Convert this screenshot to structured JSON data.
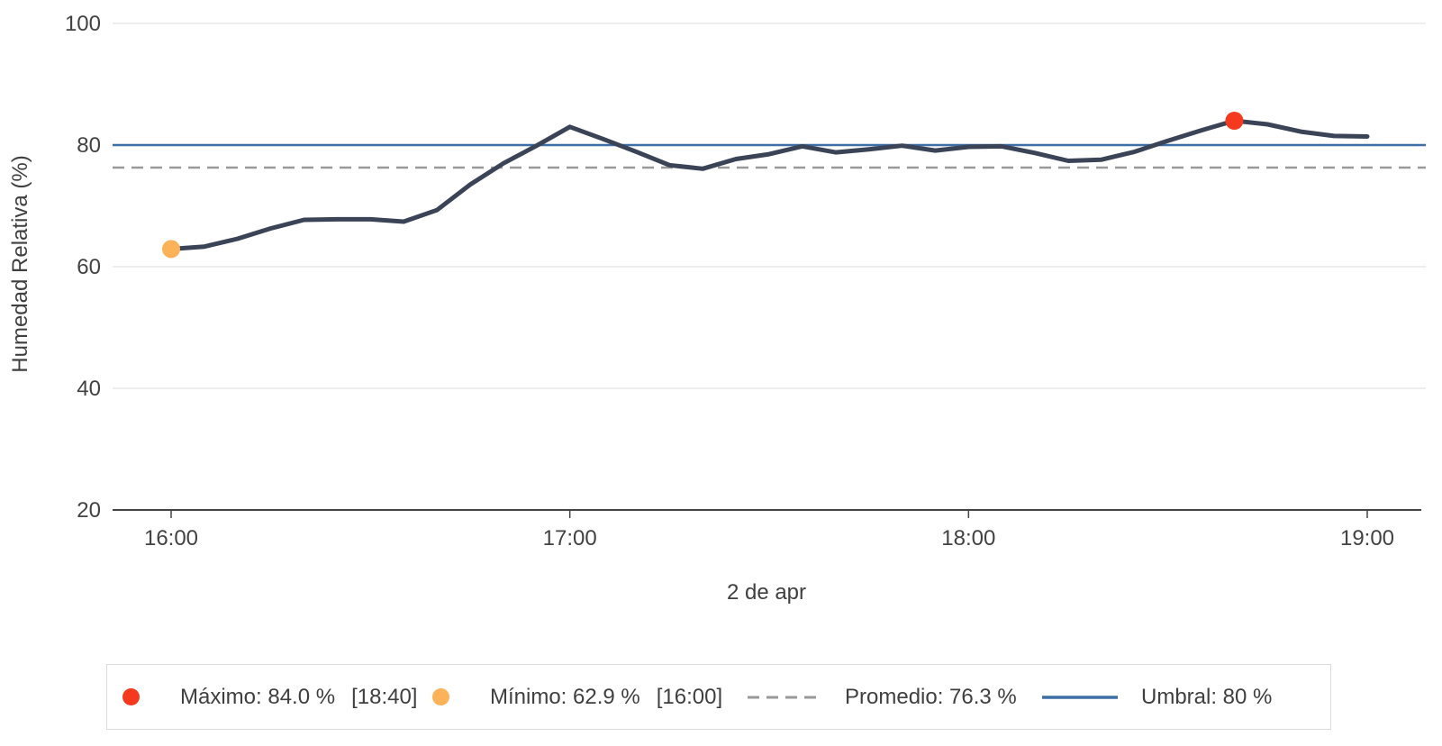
{
  "chart_data": {
    "type": "line",
    "title": "",
    "ylabel": "Humedad Relativa (%)",
    "xlabel": "2 de apr",
    "ylim": [
      20,
      100
    ],
    "yticks": [
      100,
      80,
      60,
      40,
      20
    ],
    "xticks": [
      "16:00",
      "17:00",
      "18:00",
      "19:00"
    ],
    "x": [
      "16:00",
      "16:05",
      "16:10",
      "16:15",
      "16:20",
      "16:25",
      "16:30",
      "16:35",
      "16:40",
      "16:45",
      "16:50",
      "16:55",
      "17:00",
      "17:05",
      "17:10",
      "17:15",
      "17:20",
      "17:25",
      "17:30",
      "17:35",
      "17:40",
      "17:45",
      "17:50",
      "17:55",
      "18:00",
      "18:05",
      "18:10",
      "18:15",
      "18:20",
      "18:25",
      "18:30",
      "18:35",
      "18:40",
      "18:45",
      "18:50",
      "18:55",
      "19:00"
    ],
    "series": [
      {
        "name": "Humedad Relativa (%)",
        "color": "#3b4356",
        "values": [
          62.9,
          63.3,
          64.6,
          66.3,
          67.7,
          67.8,
          67.8,
          67.4,
          69.3,
          73.5,
          77.0,
          79.9,
          83.0,
          81.0,
          78.9,
          76.7,
          76.1,
          77.7,
          78.5,
          79.8,
          78.8,
          79.3,
          79.9,
          79.1,
          79.7,
          79.8,
          78.7,
          77.4,
          77.6,
          78.9,
          80.7,
          82.4,
          84.0,
          83.4,
          82.2,
          81.5,
          81.4
        ]
      }
    ],
    "reference_lines": [
      {
        "name": "Umbral",
        "value": 80,
        "style": "solid",
        "color": "#3d6ea6"
      },
      {
        "name": "Promedio",
        "value": 76.3,
        "style": "dashed",
        "color": "#999999"
      }
    ],
    "markers": [
      {
        "name": "Máximo",
        "time": "18:40",
        "value": 84.0,
        "color": "#f5391f"
      },
      {
        "name": "Mínimo",
        "time": "16:00",
        "value": 62.9,
        "color": "#fbb259"
      }
    ],
    "legend_position": "bottom",
    "grid": "horizontal"
  },
  "legend": {
    "items": [
      {
        "label": "Máximo: 84.0 %",
        "time": "[18:40]",
        "marker": "dot",
        "color": "#f5391f"
      },
      {
        "label": "Mínimo: 62.9 %",
        "time": "[16:00]",
        "marker": "dot",
        "color": "#fbb259"
      },
      {
        "label": "Promedio: 76.3 %",
        "marker": "dashed-line",
        "color": "#999999"
      },
      {
        "label": "Umbral: 80 %",
        "marker": "solid-line",
        "color": "#3d6ea6"
      }
    ]
  },
  "colors": {
    "series": "#3b4356",
    "threshold": "#3d6ea6",
    "average": "#999999",
    "max_marker": "#f5391f",
    "min_marker": "#fbb259",
    "axis": "#444444",
    "grid": "#e9e9e9",
    "text": "#424242",
    "legend_border": "#dcdcdc"
  }
}
